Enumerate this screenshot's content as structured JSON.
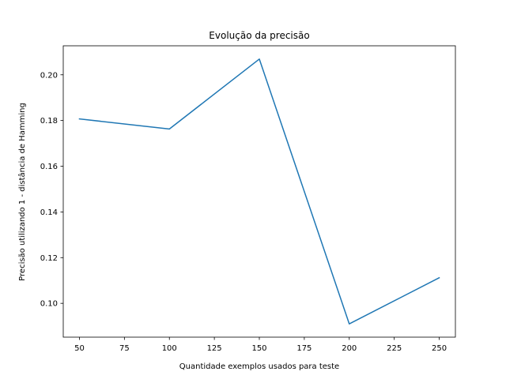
{
  "chart_data": {
    "type": "line",
    "title": "Evolução da precisão",
    "xlabel": "Quantidade exemplos usados para teste",
    "ylabel": "Precisão utilizando 1 - distância de Hamming",
    "x": [
      50,
      100,
      150,
      200,
      250
    ],
    "series": [
      {
        "color": "#1f77b4",
        "values": [
          0.1807,
          0.1763,
          0.2069,
          0.091,
          0.1112
        ]
      }
    ],
    "xlim": [
      41,
      259
    ],
    "ylim": [
      0.0852,
      0.2127
    ],
    "xticks": [
      50,
      75,
      100,
      125,
      150,
      175,
      200,
      225,
      250
    ],
    "xtick_labels": [
      "50",
      "75",
      "100",
      "125",
      "150",
      "175",
      "200",
      "225",
      "250"
    ],
    "yticks": [
      0.1,
      0.12,
      0.14,
      0.16,
      0.18,
      0.2
    ],
    "ytick_labels": [
      "0.10",
      "0.12",
      "0.14",
      "0.16",
      "0.18",
      "0.20"
    ],
    "grid": false,
    "legend": "none"
  }
}
